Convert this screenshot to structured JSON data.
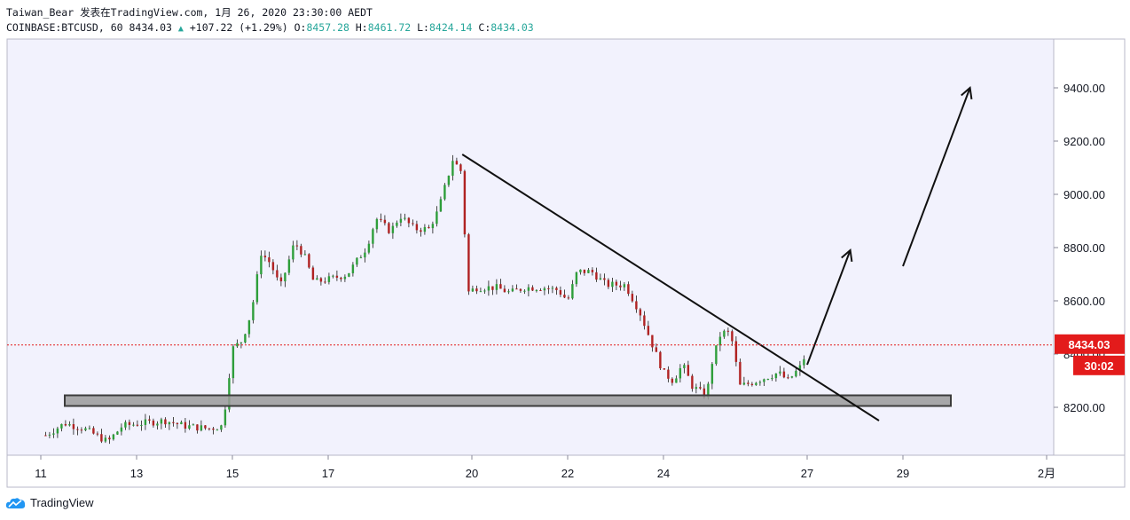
{
  "header": {
    "line1": "Taiwan_Bear 发表在TradingView.com, 1月 26, 2020 23:30:00 AEDT",
    "symbol": "COINBASE:BTCUSD, 60",
    "last": "8434.03",
    "change": "+107.22 (+1.29%)",
    "o_label": "O:",
    "o_value": "8457.28",
    "h_label": "H:",
    "h_value": "8461.72",
    "l_label": "L:",
    "l_value": "8424.14",
    "c_label": "C:",
    "c_value": "8434.03"
  },
  "footer": {
    "brand": "TradingView",
    "logo_icon": "tradingview-cloud-icon"
  },
  "colors": {
    "up": "#26a69a",
    "down": "#ef5350",
    "candle_up": "#2e9e3a",
    "candle_down": "#b02222",
    "plot_bg": "#f2f2fd",
    "price_tag": "#e31b1b",
    "support_zone": "#9a9a9a"
  },
  "chart_data": {
    "type": "candlestick",
    "symbol": "COINBASE:BTCUSD",
    "interval": "60",
    "ylim": [
      8080,
      9500
    ],
    "x_ticks": [
      {
        "label": "11",
        "t": 0
      },
      {
        "label": "13",
        "t": 2
      },
      {
        "label": "15",
        "t": 4
      },
      {
        "label": "17",
        "t": 6
      },
      {
        "label": "20",
        "t": 9
      },
      {
        "label": "22",
        "t": 11
      },
      {
        "label": "24",
        "t": 13
      },
      {
        "label": "27",
        "t": 16
      },
      {
        "label": "29",
        "t": 18
      },
      {
        "label": "2月",
        "t": 21
      }
    ],
    "y_ticks": [
      {
        "label": "8200.00",
        "v": 8200
      },
      {
        "label": "8400.00",
        "v": 8400
      },
      {
        "label": "8600.00",
        "v": 8600
      },
      {
        "label": "8800.00",
        "v": 8800
      },
      {
        "label": "9000.00",
        "v": 9000
      },
      {
        "label": "9200.00",
        "v": 9200
      },
      {
        "label": "9400.00",
        "v": 9400
      }
    ],
    "price_path": [
      [
        0.1,
        8095
      ],
      [
        0.5,
        8140
      ],
      [
        0.9,
        8120
      ],
      [
        1.4,
        8070
      ],
      [
        1.7,
        8130
      ],
      [
        2.1,
        8140
      ],
      [
        2.6,
        8150
      ],
      [
        3.0,
        8130
      ],
      [
        3.5,
        8120
      ],
      [
        3.8,
        8130
      ],
      [
        4.0,
        8420
      ],
      [
        4.2,
        8450
      ],
      [
        4.4,
        8560
      ],
      [
        4.6,
        8780
      ],
      [
        4.8,
        8740
      ],
      [
        5.0,
        8650
      ],
      [
        5.3,
        8820
      ],
      [
        5.5,
        8770
      ],
      [
        5.7,
        8670
      ],
      [
        6.0,
        8680
      ],
      [
        6.4,
        8700
      ],
      [
        6.8,
        8800
      ],
      [
        7.0,
        8910
      ],
      [
        7.3,
        8860
      ],
      [
        7.5,
        8920
      ],
      [
        7.8,
        8870
      ],
      [
        8.1,
        8870
      ],
      [
        8.3,
        8940
      ],
      [
        8.6,
        9130
      ],
      [
        8.8,
        9080
      ],
      [
        8.9,
        8630
      ],
      [
        9.1,
        8650
      ],
      [
        9.5,
        8650
      ],
      [
        9.8,
        8630
      ],
      [
        10.1,
        8650
      ],
      [
        10.5,
        8650
      ],
      [
        10.8,
        8640
      ],
      [
        11.0,
        8600
      ],
      [
        11.2,
        8710
      ],
      [
        11.5,
        8710
      ],
      [
        11.8,
        8660
      ],
      [
        12.2,
        8660
      ],
      [
        12.5,
        8560
      ],
      [
        12.8,
        8420
      ],
      [
        13.0,
        8330
      ],
      [
        13.2,
        8300
      ],
      [
        13.4,
        8360
      ],
      [
        13.6,
        8280
      ],
      [
        13.9,
        8240
      ],
      [
        14.0,
        8360
      ],
      [
        14.2,
        8480
      ],
      [
        14.4,
        8480
      ],
      [
        14.6,
        8280
      ],
      [
        14.8,
        8290
      ],
      [
        15.1,
        8310
      ],
      [
        15.4,
        8330
      ],
      [
        15.6,
        8300
      ],
      [
        15.9,
        8360
      ],
      [
        16.0,
        8434.03
      ]
    ],
    "last_price": "8434.03",
    "countdown": "30:02",
    "support_zone": {
      "x_from": 0.5,
      "x_to": 19.0,
      "y_from": 8205,
      "y_to": 8245
    },
    "trendline": {
      "from": [
        8.8,
        9150
      ],
      "to": [
        17.5,
        8150
      ]
    },
    "arrows": [
      {
        "from": [
          16.0,
          8360
        ],
        "to": [
          16.9,
          8790
        ]
      },
      {
        "from": [
          18.0,
          8730
        ],
        "to": [
          19.4,
          9400
        ]
      }
    ]
  }
}
